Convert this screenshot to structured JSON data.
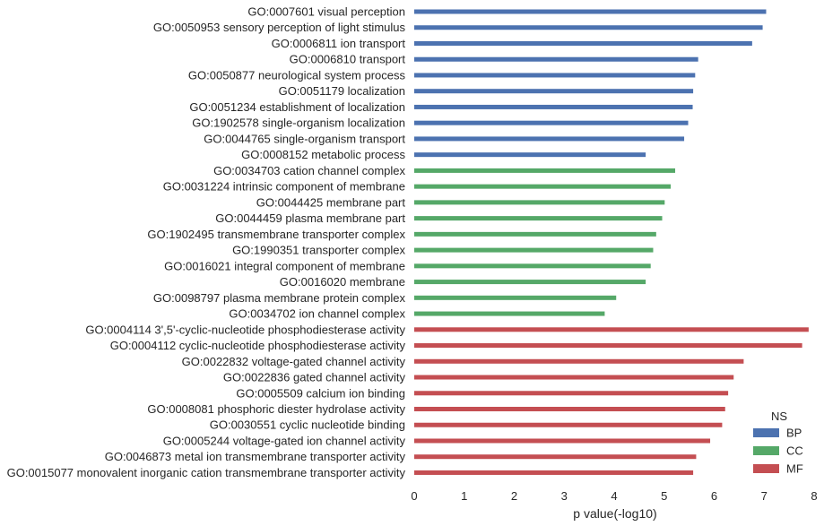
{
  "chart_data": {
    "type": "bar",
    "orientation": "horizontal",
    "xlabel": "p value(-log10)",
    "ylabel": "",
    "xlim": [
      0,
      8
    ],
    "xticks": [
      "0",
      "1",
      "2",
      "3",
      "4",
      "5",
      "6",
      "7",
      "8"
    ],
    "grid": false,
    "legend": {
      "title": "NS",
      "placement": "bottom-right",
      "entries": [
        {
          "name": "BP",
          "color": "#4c72b0"
        },
        {
          "name": "CC",
          "color": "#55a868"
        },
        {
          "name": "MF",
          "color": "#c44e52"
        }
      ]
    },
    "categories": [
      "GO:0007601 visual perception",
      "GO:0050953 sensory perception of light stimulus",
      "GO:0006811 ion transport",
      "GO:0006810 transport",
      "GO:0050877 neurological system process",
      "GO:0051179 localization",
      "GO:0051234 establishment of localization",
      "GO:1902578 single-organism localization",
      "GO:0044765 single-organism transport",
      "GO:0008152 metabolic process",
      "GO:0034703 cation channel complex",
      "GO:0031224 intrinsic component of membrane",
      "GO:0044425 membrane part",
      "GO:0044459 plasma membrane part",
      "GO:1902495 transmembrane transporter complex",
      "GO:1990351 transporter complex",
      "GO:0016021 integral component of membrane",
      "GO:0016020 membrane",
      "GO:0098797 plasma membrane protein complex",
      "GO:0034702 ion channel complex",
      "GO:0004114 3',5'-cyclic-nucleotide phosphodiesterase activity",
      "GO:0004112 cyclic-nucleotide phosphodiesterase activity",
      "GO:0022832 voltage-gated channel activity",
      "GO:0022836 gated channel activity",
      "GO:0005509 calcium ion binding",
      "GO:0008081 phosphoric diester hydrolase activity",
      "GO:0030551 cyclic nucleotide binding",
      "GO:0005244 voltage-gated ion channel activity",
      "GO:0046873 metal ion transmembrane transporter activity",
      "GO:0015077 monovalent inorganic cation transmembrane transporter activity"
    ],
    "groups": [
      "BP",
      "BP",
      "BP",
      "BP",
      "BP",
      "BP",
      "BP",
      "BP",
      "BP",
      "BP",
      "CC",
      "CC",
      "CC",
      "CC",
      "CC",
      "CC",
      "CC",
      "CC",
      "CC",
      "CC",
      "MF",
      "MF",
      "MF",
      "MF",
      "MF",
      "MF",
      "MF",
      "MF",
      "MF",
      "MF"
    ],
    "series": [
      {
        "name": "",
        "values": [
          7.04,
          6.97,
          6.76,
          5.68,
          5.62,
          5.58,
          5.57,
          5.48,
          5.4,
          4.63,
          5.22,
          5.13,
          5.01,
          4.96,
          4.84,
          4.78,
          4.73,
          4.63,
          4.04,
          3.81,
          7.89,
          7.76,
          6.59,
          6.39,
          6.28,
          6.22,
          6.16,
          5.92,
          5.64,
          5.58
        ]
      }
    ]
  }
}
